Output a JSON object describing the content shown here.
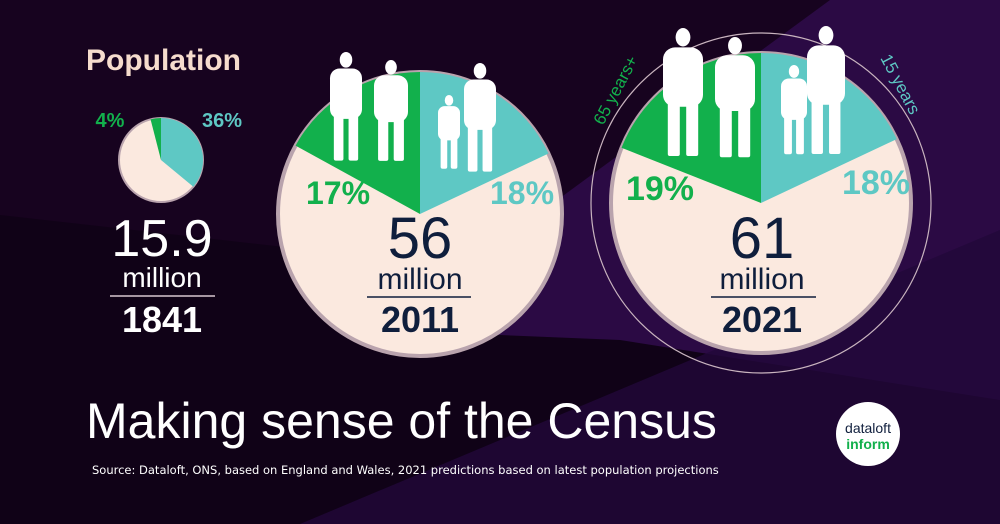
{
  "heading": "Population",
  "title": "Making sense of the Census",
  "source": "Source: Dataloft, ONS, based on England and Wales, 2021 predictions based on latest population projections",
  "logo": {
    "line1": "dataloft",
    "line2": "inform"
  },
  "colors": {
    "background": "#17031f",
    "band": "#2b0a44",
    "older": "#12b04c",
    "younger": "#5ec8c4",
    "rest": "#fbe9df",
    "number_dark": "#0f1e3c",
    "heading": "#f6dccd"
  },
  "chart_data": [
    {
      "type": "pie",
      "year": "1841",
      "total": "15.9",
      "unit": "million",
      "slices": [
        {
          "category": "65 years+",
          "value": 4,
          "label": "4%"
        },
        {
          "category": "15 years",
          "value": 36,
          "label": "36%"
        }
      ]
    },
    {
      "type": "pie",
      "year": "2011",
      "total": "56",
      "unit": "million",
      "slices": [
        {
          "category": "65 years+",
          "value": 17,
          "label": "17%"
        },
        {
          "category": "15 years",
          "value": 18,
          "label": "18%"
        }
      ]
    },
    {
      "type": "pie",
      "year": "2021",
      "total": "61",
      "unit": "million",
      "legend": {
        "older": "65 years+",
        "younger": "15 years"
      },
      "slices": [
        {
          "category": "65 years+",
          "value": 19,
          "label": "19%"
        },
        {
          "category": "15 years",
          "value": 18,
          "label": "18%"
        }
      ]
    }
  ]
}
